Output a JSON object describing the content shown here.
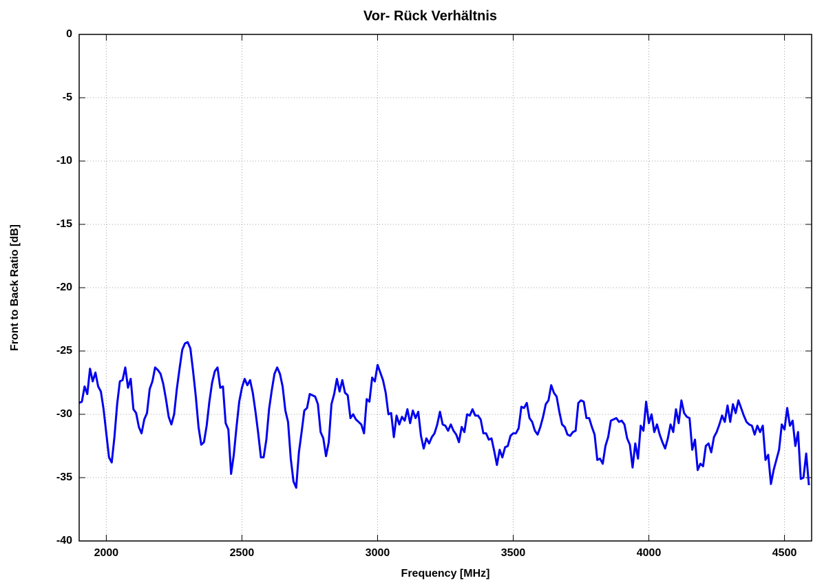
{
  "chart_data": {
    "type": "line",
    "title": "Vor- Rück Verhältnis",
    "xlabel": "Frequency [MHz]",
    "ylabel": "Front to Back Ratio [dB]",
    "color": "#0000ee",
    "xlim": [
      1900,
      4600
    ],
    "ylim": [
      -40,
      0
    ],
    "xticks": [
      2000,
      2500,
      3000,
      3500,
      4000,
      4500
    ],
    "yticks": [
      0,
      -5,
      -10,
      -15,
      -20,
      -25,
      -30,
      -35,
      -40
    ],
    "grid": true,
    "x": [
      1900,
      1910,
      1920,
      1930,
      1940,
      1950,
      1960,
      1970,
      1980,
      1990,
      2000,
      2010,
      2020,
      2030,
      2040,
      2050,
      2060,
      2070,
      2080,
      2090,
      2100,
      2110,
      2120,
      2130,
      2140,
      2150,
      2160,
      2170,
      2180,
      2190,
      2200,
      2210,
      2220,
      2230,
      2240,
      2250,
      2260,
      2270,
      2280,
      2290,
      2300,
      2310,
      2320,
      2330,
      2340,
      2350,
      2360,
      2370,
      2380,
      2390,
      2400,
      2410,
      2420,
      2430,
      2440,
      2450,
      2460,
      2470,
      2480,
      2490,
      2500,
      2510,
      2520,
      2530,
      2540,
      2550,
      2560,
      2570,
      2580,
      2590,
      2600,
      2610,
      2620,
      2630,
      2640,
      2650,
      2660,
      2670,
      2680,
      2690,
      2700,
      2710,
      2720,
      2730,
      2740,
      2750,
      2760,
      2770,
      2780,
      2790,
      2800,
      2810,
      2820,
      2830,
      2840,
      2850,
      2860,
      2870,
      2880,
      2890,
      2900,
      2910,
      2920,
      2930,
      2940,
      2950,
      2960,
      2970,
      2980,
      2990,
      3000,
      3010,
      3020,
      3030,
      3040,
      3050,
      3060,
      3070,
      3080,
      3090,
      3100,
      3110,
      3120,
      3130,
      3140,
      3150,
      3160,
      3170,
      3180,
      3190,
      3200,
      3210,
      3220,
      3230,
      3240,
      3250,
      3260,
      3270,
      3280,
      3290,
      3300,
      3310,
      3320,
      3330,
      3340,
      3350,
      3360,
      3370,
      3380,
      3390,
      3400,
      3410,
      3420,
      3430,
      3440,
      3450,
      3460,
      3470,
      3480,
      3490,
      3500,
      3510,
      3520,
      3530,
      3540,
      3550,
      3560,
      3570,
      3580,
      3590,
      3600,
      3610,
      3620,
      3630,
      3640,
      3650,
      3660,
      3670,
      3680,
      3690,
      3700,
      3710,
      3720,
      3730,
      3740,
      3750,
      3760,
      3770,
      3780,
      3790,
      3800,
      3810,
      3820,
      3830,
      3840,
      3850,
      3860,
      3870,
      3880,
      3890,
      3900,
      3910,
      3920,
      3930,
      3940,
      3950,
      3960,
      3970,
      3980,
      3990,
      4000,
      4010,
      4020,
      4030,
      4040,
      4050,
      4060,
      4070,
      4080,
      4090,
      4100,
      4110,
      4120,
      4130,
      4140,
      4150,
      4160,
      4170,
      4180,
      4190,
      4200,
      4210,
      4220,
      4230,
      4240,
      4250,
      4260,
      4270,
      4280,
      4290,
      4300,
      4310,
      4320,
      4330,
      4340,
      4350,
      4360,
      4370,
      4380,
      4390,
      4400,
      4410,
      4420,
      4430,
      4440,
      4450,
      4460,
      4470,
      4480,
      4490,
      4500,
      4510,
      4520,
      4530,
      4540,
      4550,
      4560,
      4570,
      4580,
      4590
    ],
    "values": [
      -29.1,
      -29.0,
      -27.8,
      -28.4,
      -26.4,
      -27.4,
      -26.7,
      -27.8,
      -28.2,
      -29.6,
      -31.5,
      -33.4,
      -33.8,
      -31.8,
      -29.2,
      -27.4,
      -27.3,
      -26.3,
      -27.9,
      -27.2,
      -29.6,
      -29.9,
      -31.0,
      -31.5,
      -30.4,
      -29.9,
      -28.0,
      -27.4,
      -26.3,
      -26.5,
      -26.8,
      -27.6,
      -28.8,
      -30.2,
      -30.8,
      -30.0,
      -28.0,
      -26.4,
      -24.9,
      -24.4,
      -24.3,
      -24.8,
      -26.6,
      -28.6,
      -31.0,
      -32.4,
      -32.2,
      -30.9,
      -29.0,
      -27.5,
      -26.6,
      -26.3,
      -27.9,
      -27.8,
      -30.7,
      -31.2,
      -34.7,
      -33.2,
      -31.0,
      -29.0,
      -27.9,
      -27.2,
      -27.7,
      -27.3,
      -28.3,
      -29.8,
      -31.5,
      -33.4,
      -33.4,
      -32.0,
      -29.6,
      -28.1,
      -26.8,
      -26.3,
      -26.8,
      -27.8,
      -29.7,
      -30.6,
      -33.5,
      -35.3,
      -35.8,
      -33.0,
      -31.4,
      -29.7,
      -29.5,
      -28.4,
      -28.5,
      -28.6,
      -29.2,
      -31.4,
      -31.9,
      -33.3,
      -32.2,
      -29.2,
      -28.4,
      -27.2,
      -28.2,
      -27.3,
      -28.3,
      -28.5,
      -30.3,
      -30.0,
      -30.4,
      -30.6,
      -30.8,
      -31.5,
      -28.8,
      -29.0,
      -27.1,
      -27.4,
      -26.1,
      -26.7,
      -27.3,
      -28.3,
      -30.0,
      -29.9,
      -31.8,
      -30.1,
      -30.8,
      -30.2,
      -30.5,
      -29.6,
      -30.7,
      -29.7,
      -30.3,
      -29.8,
      -31.7,
      -32.7,
      -31.9,
      -32.3,
      -31.8,
      -31.5,
      -30.8,
      -29.8,
      -30.8,
      -30.9,
      -31.3,
      -30.8,
      -31.3,
      -31.6,
      -32.2,
      -31.0,
      -31.4,
      -30.0,
      -30.1,
      -29.6,
      -30.1,
      -30.1,
      -30.4,
      -31.5,
      -31.5,
      -32.0,
      -31.9,
      -32.9,
      -34.0,
      -32.8,
      -33.4,
      -32.6,
      -32.5,
      -31.7,
      -31.5,
      -31.5,
      -31.1,
      -29.4,
      -29.5,
      -29.1,
      -30.3,
      -30.6,
      -31.3,
      -31.6,
      -31.0,
      -30.2,
      -29.2,
      -28.9,
      -27.7,
      -28.3,
      -28.6,
      -29.8,
      -30.8,
      -31.0,
      -31.6,
      -31.7,
      -31.4,
      -31.3,
      -29.1,
      -28.9,
      -29.0,
      -30.3,
      -30.3,
      -31.0,
      -31.6,
      -33.6,
      -33.5,
      -33.9,
      -32.5,
      -31.8,
      -30.5,
      -30.4,
      -30.3,
      -30.6,
      -30.5,
      -30.8,
      -31.9,
      -32.4,
      -34.2,
      -32.3,
      -33.5,
      -30.9,
      -31.3,
      -29.0,
      -30.7,
      -30.0,
      -31.4,
      -30.8,
      -31.6,
      -32.2,
      -32.7,
      -31.9,
      -30.8,
      -31.4,
      -29.6,
      -30.7,
      -28.9,
      -29.9,
      -30.2,
      -30.3,
      -32.8,
      -32.0,
      -34.4,
      -33.9,
      -34.1,
      -32.5,
      -32.3,
      -33.0,
      -31.8,
      -31.4,
      -30.8,
      -30.1,
      -30.6,
      -29.3,
      -30.6,
      -29.2,
      -29.9,
      -28.9,
      -29.5,
      -30.1,
      -30.6,
      -30.8,
      -30.9,
      -31.6,
      -30.9,
      -31.4,
      -30.9,
      -33.6,
      -33.2,
      -35.5,
      -34.4,
      -33.6,
      -32.8,
      -30.8,
      -31.2,
      -29.5,
      -30.9,
      -30.5,
      -32.5,
      -31.4,
      -35.1,
      -35.0,
      -33.1,
      -35.6
    ]
  }
}
